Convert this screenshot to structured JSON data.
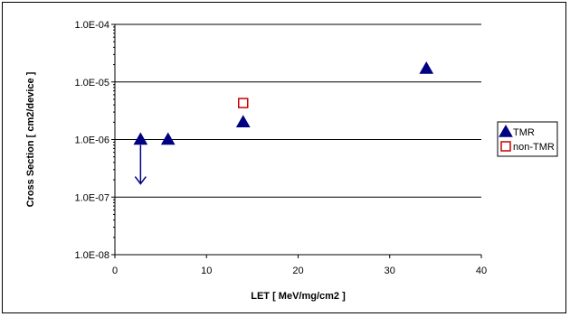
{
  "chart_data": {
    "type": "scatter",
    "xlabel": "LET  [ MeV/mg/cm2 ]",
    "ylabel": "Cross Section  [ cm2/device ]",
    "xlim": [
      0,
      40
    ],
    "ylim": [
      1e-08,
      0.0001
    ],
    "yscale": "log",
    "x_ticks": [
      0,
      10,
      20,
      30,
      40
    ],
    "x_tick_labels": [
      "0",
      "10",
      "20",
      "30",
      "40"
    ],
    "y_ticks": [
      1e-08,
      1e-07,
      1e-06,
      1e-05,
      0.0001
    ],
    "y_tick_labels": [
      "1.0E-08",
      "1.0E-07",
      "1.0E-06",
      "1.0E-05",
      "1.0E-04"
    ],
    "grid": "horizontal major",
    "legend": "right",
    "series": [
      {
        "name": "TMR",
        "marker": "triangle",
        "color": "#000080",
        "points": [
          {
            "x": 2.8,
            "y": 1e-06
          },
          {
            "x": 5.8,
            "y": 1e-06
          },
          {
            "x": 14.0,
            "y": 2e-06
          },
          {
            "x": 34.0,
            "y": 1.7e-05
          }
        ]
      },
      {
        "name": "non-TMR",
        "marker": "open-square",
        "color": "#cc0000",
        "points": [
          {
            "x": 14.0,
            "y": 4.3e-06
          }
        ]
      }
    ],
    "annotations": [
      {
        "type": "upper-limit-arrow",
        "x": 2.8,
        "y_from": 1e-06,
        "y_to": 1.7e-07,
        "color": "#000080"
      }
    ]
  }
}
